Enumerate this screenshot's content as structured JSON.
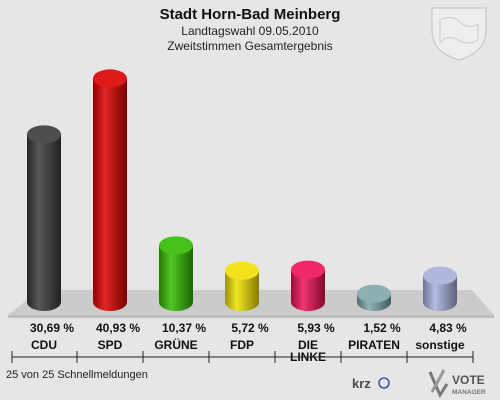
{
  "header": {
    "title": "Stadt Horn-Bad Meinberg",
    "subtitle1": "Landtagswahl 09.05.2010",
    "subtitle2": "Zweitstimmen Gesamtergebnis"
  },
  "footer": {
    "note": "25 von 25 Schnellmeldungen",
    "logo_text": "krz",
    "brand_line1": "VOTE",
    "brand_line2": "MANAGER"
  },
  "colors": {
    "CDU": "#3a3a3a",
    "SPD": "#dd0000",
    "GRUENE": "#33bb00",
    "FDP": "#f0e000",
    "LINKE": "#ee1155",
    "PIRATEN": "#7fa6a6",
    "sonstige": "#a8b0dd"
  },
  "chart_data": {
    "type": "bar",
    "categories": [
      "CDU",
      "SPD",
      "GRÜNE",
      "FDP",
      "DIE LINKE",
      "PIRATEN",
      "sonstige"
    ],
    "values": [
      30.69,
      40.93,
      10.37,
      5.72,
      5.93,
      1.52,
      4.83
    ],
    "value_labels": [
      "30,69 %",
      "40,93 %",
      "10,37 %",
      "5,72 %",
      "5,93 %",
      "1,52 %",
      "4,83 %"
    ],
    "series_colors": [
      "#3a3a3a",
      "#dd0000",
      "#33bb00",
      "#f0e000",
      "#ee1155",
      "#7fa6a6",
      "#a8b0dd"
    ],
    "ylim": [
      0,
      41
    ],
    "grid": false,
    "legend": "none"
  }
}
